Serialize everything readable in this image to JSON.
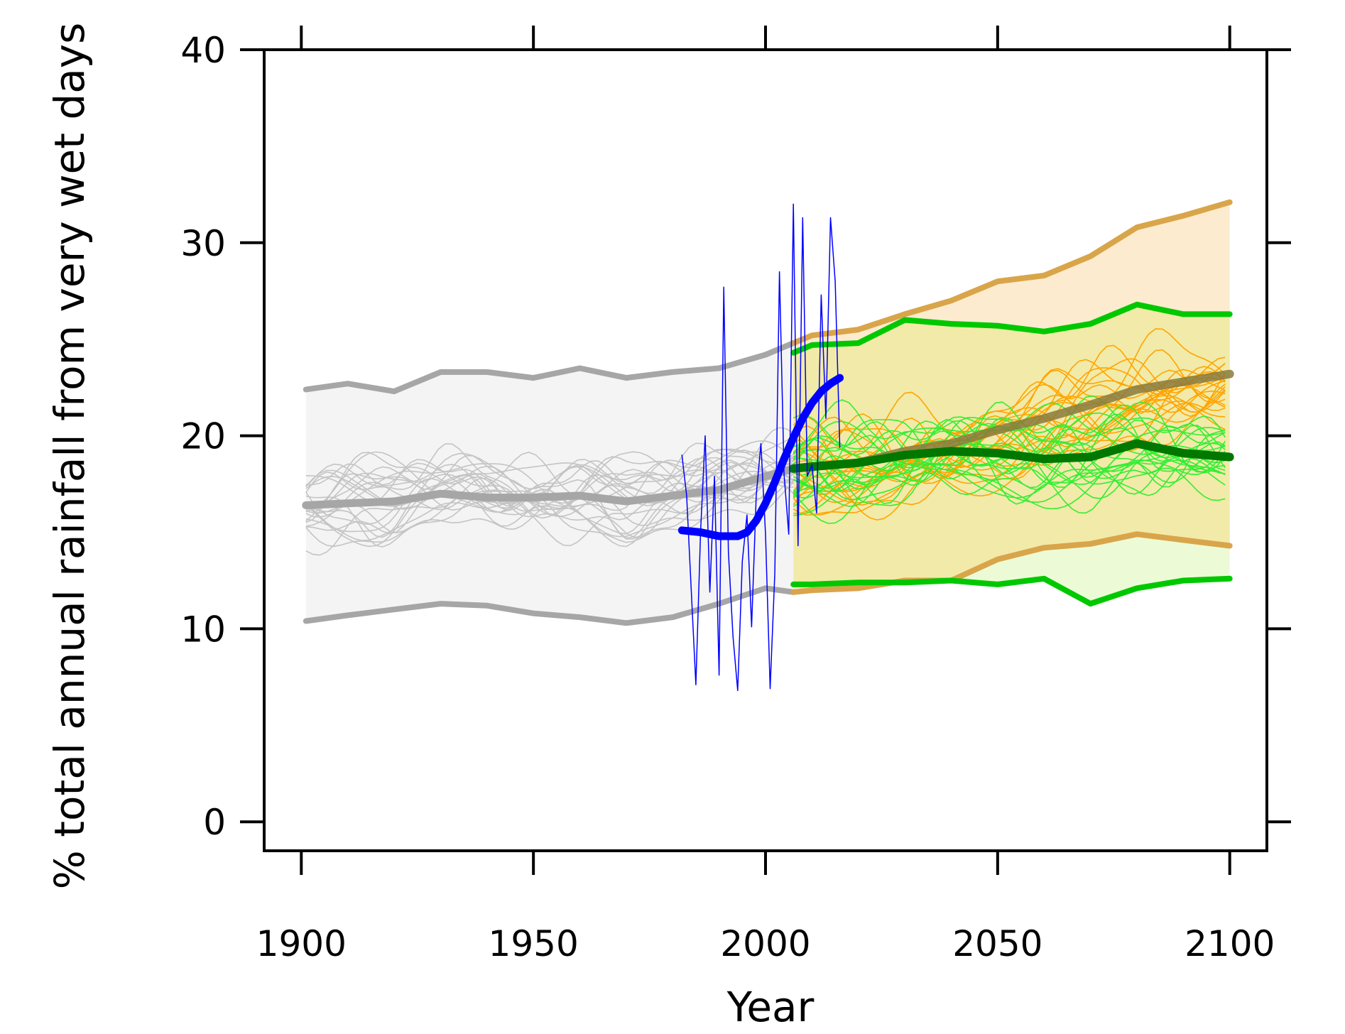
{
  "chart_data": {
    "type": "line",
    "title": "",
    "xlabel": "Year",
    "ylabel": "% total annual rainfall from very wet days",
    "xlim": [
      1892,
      2108
    ],
    "ylim": [
      -1.5,
      40
    ],
    "x_ticks": [
      1900,
      1950,
      2000,
      2050,
      2100
    ],
    "y_ticks": [
      0,
      10,
      20,
      30,
      40
    ],
    "x_tick_labels": [
      "1900",
      "1950",
      "2000",
      "2050",
      "2100"
    ],
    "y_tick_labels": [
      "0",
      "10",
      "20",
      "30",
      "40"
    ],
    "grid": false,
    "colors": {
      "historical": "#a6a6a6",
      "historical_members": "#c4c4c4",
      "historical_band": "#f4f4f4",
      "observed": "#0000ff",
      "rcp85": "#d9a54a",
      "rcp85_median": "#8a7a3c",
      "rcp85_members": "#ffa500",
      "rcp85_band": "#fdebcf",
      "rcp45": "#00c800",
      "rcp45_median": "#007800",
      "rcp45_members": "#33ee33",
      "overlap_band": "#f2eaa8",
      "rcp45_low_band": "#ecfbd6"
    },
    "bands": [
      {
        "id": "historical",
        "x": [
          1901,
          1910,
          1920,
          1930,
          1940,
          1950,
          1960,
          1970,
          1980,
          1990,
          2000,
          2006
        ],
        "upper": [
          22.4,
          22.7,
          22.3,
          23.3,
          23.3,
          23.0,
          23.5,
          23.0,
          23.3,
          23.5,
          24.2,
          24.8
        ],
        "lower": [
          10.4,
          10.7,
          11.0,
          11.3,
          11.2,
          10.8,
          10.6,
          10.3,
          10.6,
          11.3,
          12.1,
          11.9
        ]
      },
      {
        "id": "rcp85",
        "x": [
          2006,
          2010,
          2020,
          2030,
          2040,
          2050,
          2060,
          2070,
          2080,
          2090,
          2100
        ],
        "upper": [
          24.8,
          25.2,
          25.5,
          26.3,
          27.0,
          28.0,
          28.3,
          29.3,
          30.8,
          31.4,
          32.1
        ],
        "lower": [
          11.9,
          12.0,
          12.1,
          12.5,
          12.5,
          13.6,
          14.2,
          14.4,
          14.9,
          14.6,
          14.3
        ]
      },
      {
        "id": "rcp45",
        "x": [
          2006,
          2010,
          2020,
          2030,
          2040,
          2050,
          2060,
          2070,
          2080,
          2090,
          2100
        ],
        "upper": [
          24.3,
          24.7,
          24.8,
          26.0,
          25.8,
          25.7,
          25.4,
          25.8,
          26.8,
          26.3,
          26.3
        ],
        "lower": [
          12.3,
          12.3,
          12.4,
          12.4,
          12.5,
          12.3,
          12.6,
          11.3,
          12.1,
          12.5,
          12.6
        ]
      }
    ],
    "series": [
      {
        "id": "historical-median",
        "x": [
          1901,
          1910,
          1920,
          1930,
          1940,
          1950,
          1960,
          1970,
          1980,
          1990,
          2000,
          2006
        ],
        "values": [
          16.4,
          16.5,
          16.6,
          17.0,
          16.8,
          16.8,
          16.9,
          16.6,
          16.9,
          17.2,
          17.9,
          18.3
        ]
      },
      {
        "id": "rcp85-median",
        "x": [
          2006,
          2010,
          2020,
          2030,
          2040,
          2050,
          2060,
          2070,
          2080,
          2090,
          2100
        ],
        "values": [
          18.3,
          18.4,
          18.6,
          19.2,
          19.6,
          20.3,
          20.9,
          21.6,
          22.4,
          22.8,
          23.2
        ]
      },
      {
        "id": "rcp45-median",
        "x": [
          2006,
          2010,
          2020,
          2030,
          2040,
          2050,
          2060,
          2070,
          2080,
          2090,
          2100
        ],
        "values": [
          18.3,
          18.4,
          18.6,
          19.0,
          19.2,
          19.1,
          18.8,
          18.9,
          19.6,
          19.1,
          18.9
        ]
      },
      {
        "id": "observed-smooth",
        "x": [
          1982,
          1986,
          1990,
          1994,
          1996,
          1998,
          2000,
          2002,
          2004,
          2006,
          2008,
          2010,
          2012,
          2014,
          2016
        ],
        "values": [
          15.1,
          15.0,
          14.8,
          14.8,
          15.0,
          15.6,
          16.5,
          17.6,
          18.8,
          19.9,
          20.9,
          21.7,
          22.3,
          22.7,
          23.0
        ]
      },
      {
        "id": "observed-annual",
        "x": [
          1982,
          1983,
          1984,
          1985,
          1986,
          1987,
          1988,
          1989,
          1990,
          1991,
          1992,
          1993,
          1994,
          1995,
          1996,
          1997,
          1998,
          1999,
          2000,
          2001,
          2002,
          2003,
          2004,
          2005,
          2006,
          2007,
          2008,
          2009,
          2010,
          2011,
          2012,
          2013,
          2014,
          2015,
          2016
        ],
        "values": [
          19.0,
          16.9,
          12.0,
          7.1,
          15.0,
          20.0,
          11.9,
          17.9,
          7.6,
          27.7,
          14.0,
          9.6,
          6.8,
          13.5,
          15.9,
          10.1,
          16.9,
          19.6,
          14.9,
          6.9,
          12.9,
          28.5,
          18.0,
          14.9,
          32.0,
          14.3,
          31.3,
          17.9,
          18.5,
          16.0,
          27.3,
          20.9,
          31.3,
          28.0,
          19.4
        ]
      }
    ]
  }
}
